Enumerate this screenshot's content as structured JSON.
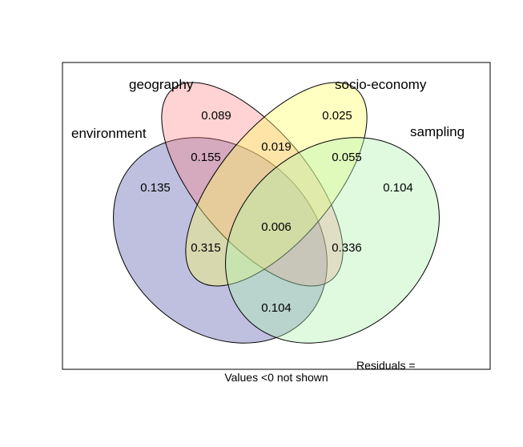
{
  "sets": [
    {
      "name": "environment",
      "color": "#7f7fbf"
    },
    {
      "name": "geography",
      "color": "#ff7f7f"
    },
    {
      "name": "socio-economy",
      "color": "#ffff66"
    },
    {
      "name": "sampling",
      "color": "#b2f2b2"
    }
  ],
  "regions": {
    "env_only": "0.135",
    "geo_only": "0.089",
    "soc_only": "0.025",
    "samp_only": "0.104",
    "env_geo": "0.155",
    "geo_soc": "0.019",
    "soc_samp": "0.055",
    "env_soc": "0.315",
    "geo_samp": "0.336",
    "all_four": "0.006",
    "env_samp": "0.104"
  },
  "residuals_label": "Residuals =",
  "footer": "Values <0 not shown"
}
